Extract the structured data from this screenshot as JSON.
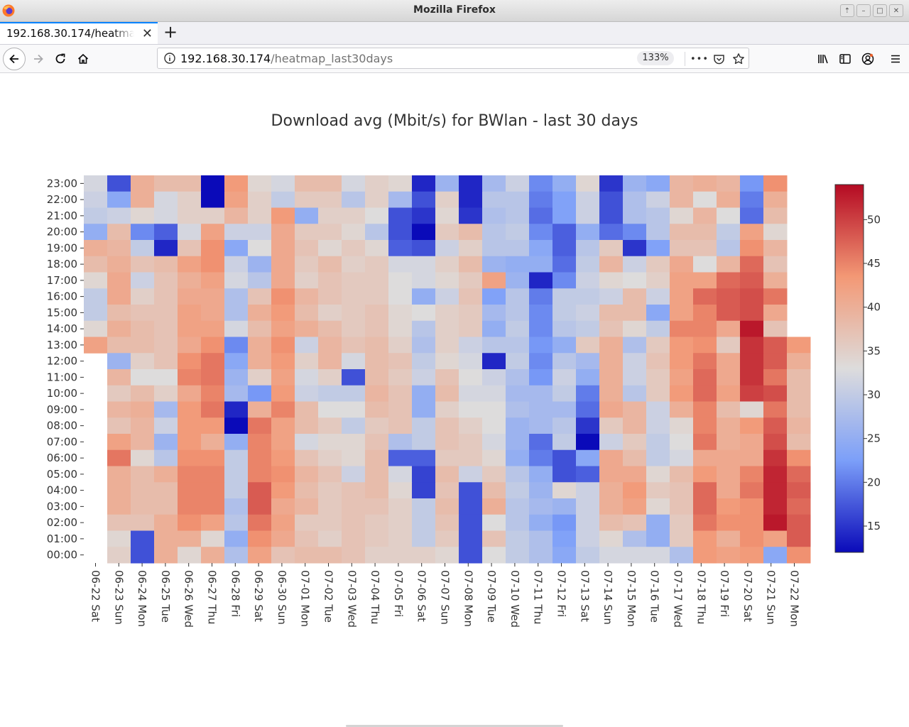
{
  "window": {
    "title": "Mozilla Firefox"
  },
  "tab": {
    "label": "192.168.30.174/heatmap_last30days",
    "close": "✕"
  },
  "newtab": {
    "label": "+"
  },
  "urlbar": {
    "host": "192.168.30.174",
    "path": "/heatmap_last30days",
    "zoom": "133%",
    "more": "•••"
  },
  "icons": [
    "firefox-logo-icon",
    "back-arrow-icon",
    "forward-arrow-icon",
    "reload-icon",
    "home-icon",
    "info-icon",
    "pocket-icon",
    "star-icon",
    "library-icon",
    "sidebar-icon",
    "account-icon",
    "menu-icon"
  ],
  "chart_data": {
    "type": "heatmap",
    "title": "Download avg (Mbit/s) for BWlan - last 30 days",
    "x_tick_labels": [
      "06-22 Sat",
      "06-23 Sun",
      "06-24 Mon",
      "06-25 Tue",
      "06-26 Wed",
      "06-27 Thu",
      "06-28 Fri",
      "06-29 Sat",
      "06-30 Sun",
      "07-01 Mon",
      "07-02 Tue",
      "07-03 Wed",
      "07-04 Thu",
      "07-05 Fri",
      "07-06 Sat",
      "07-07 Sun",
      "07-08 Mon",
      "07-09 Tue",
      "07-10 Wed",
      "07-11 Thu",
      "07-12 Fri",
      "07-13 Sat",
      "07-14 Sun",
      "07-15 Mon",
      "07-16 Tue",
      "07-17 Wed",
      "07-18 Thu",
      "07-19 Fri",
      "07-20 Sat",
      "07-21 Sun",
      "07-22 Mon"
    ],
    "y_tick_labels": [
      "23:00",
      "22:00",
      "21:00",
      "20:00",
      "19:00",
      "18:00",
      "17:00",
      "16:00",
      "15:00",
      "14:00",
      "13:00",
      "12:00",
      "11:00",
      "10:00",
      "09:00",
      "08:00",
      "07:00",
      "06:00",
      "05:00",
      "04:00",
      "03:00",
      "02:00",
      "01:00",
      "00:00"
    ],
    "colorbar": {
      "min": 12,
      "max": 54,
      "ticks": [
        15,
        20,
        25,
        30,
        35,
        40,
        45,
        50
      ],
      "colormap": "coolwarm"
    },
    "z": [
      [
        32,
        17,
        40,
        38,
        38,
        12,
        43,
        34,
        32,
        38,
        38,
        32,
        35,
        34,
        14,
        26,
        14,
        27,
        31,
        21,
        25,
        34,
        15,
        26,
        24,
        39,
        40,
        39,
        22,
        44,
        null
      ],
      [
        31,
        24,
        40,
        32,
        35,
        12,
        42,
        35,
        30,
        36,
        36,
        29,
        35,
        27,
        17,
        35,
        14,
        29,
        29,
        20,
        23,
        31,
        17,
        28,
        31,
        39,
        33,
        40,
        20,
        40,
        null
      ],
      [
        30,
        31,
        34,
        32,
        35,
        35,
        39,
        35,
        43,
        25,
        35,
        35,
        33,
        17,
        15,
        34,
        15,
        28,
        29,
        19,
        23,
        31,
        17,
        28,
        29,
        34,
        39,
        33,
        19,
        38,
        null
      ],
      [
        25,
        38,
        21,
        18,
        32,
        42,
        31,
        31,
        41,
        36,
        36,
        34,
        29,
        17,
        12,
        36,
        38,
        29,
        30,
        21,
        18,
        25,
        19,
        21,
        29,
        38,
        38,
        30,
        42,
        34,
        null
      ],
      [
        40,
        39,
        30,
        14,
        37,
        44,
        24,
        33,
        41,
        37,
        34,
        36,
        34,
        18,
        17,
        31,
        35,
        29,
        29,
        24,
        18,
        29,
        36,
        15,
        23,
        37,
        37,
        29,
        44,
        39,
        null
      ],
      [
        38,
        40,
        37,
        38,
        42,
        44,
        31,
        26,
        41,
        36,
        38,
        35,
        36,
        32,
        32,
        35,
        38,
        26,
        25,
        25,
        19,
        30,
        39,
        31,
        36,
        41,
        33,
        39,
        47,
        37,
        null
      ],
      [
        34,
        41,
        31,
        37,
        40,
        42,
        32,
        29,
        41,
        35,
        37,
        36,
        36,
        33,
        32,
        34,
        36,
        42,
        26,
        14,
        21,
        31,
        34,
        33,
        35,
        42,
        42,
        47,
        48,
        40,
        null
      ],
      [
        30,
        41,
        35,
        37,
        41,
        41,
        28,
        37,
        44,
        39,
        37,
        36,
        36,
        33,
        25,
        31,
        37,
        23,
        29,
        20,
        30,
        30,
        31,
        38,
        31,
        42,
        47,
        48,
        49,
        46,
        null
      ],
      [
        30,
        38,
        37,
        37,
        42,
        41,
        28,
        40,
        43,
        38,
        35,
        36,
        37,
        34,
        33,
        35,
        36,
        27,
        29,
        21,
        30,
        31,
        38,
        38,
        24,
        42,
        45,
        48,
        49,
        41,
        null
      ],
      [
        34,
        40,
        38,
        37,
        42,
        42,
        32,
        38,
        42,
        40,
        38,
        36,
        37,
        34,
        29,
        35,
        36,
        25,
        30,
        21,
        29,
        30,
        37,
        34,
        30,
        45,
        45,
        41,
        53,
        37,
        null
      ],
      [
        42,
        38,
        38,
        37,
        41,
        44,
        21,
        40,
        44,
        31,
        39,
        37,
        38,
        35,
        28,
        35,
        31,
        29,
        29,
        22,
        25,
        36,
        40,
        28,
        36,
        43,
        44,
        36,
        51,
        48,
        43
      ],
      [
        null,
        26,
        35,
        37,
        44,
        46,
        24,
        40,
        43,
        35,
        39,
        32,
        38,
        37,
        30,
        34,
        32,
        14,
        30,
        21,
        29,
        27,
        40,
        31,
        37,
        43,
        46,
        41,
        51,
        48,
        40
      ],
      [
        null,
        39,
        33,
        33,
        45,
        46,
        26,
        35,
        42,
        32,
        35,
        17,
        38,
        36,
        31,
        37,
        33,
        31,
        28,
        22,
        31,
        25,
        40,
        31,
        36,
        42,
        47,
        41,
        51,
        46,
        38
      ],
      [
        null,
        36,
        38,
        35,
        41,
        45,
        27,
        22,
        43,
        31,
        30,
        30,
        39,
        37,
        25,
        38,
        32,
        32,
        27,
        27,
        30,
        20,
        40,
        29,
        36,
        43,
        47,
        42,
        50,
        49,
        38
      ],
      [
        null,
        39,
        40,
        27,
        43,
        46,
        14,
        40,
        45,
        38,
        33,
        33,
        38,
        37,
        25,
        35,
        33,
        33,
        28,
        27,
        27,
        19,
        41,
        39,
        31,
        40,
        45,
        38,
        34,
        46,
        38
      ],
      [
        null,
        37,
        39,
        31,
        43,
        43,
        12,
        46,
        42,
        38,
        36,
        30,
        36,
        37,
        30,
        37,
        35,
        33,
        26,
        27,
        29,
        15,
        36,
        39,
        31,
        34,
        45,
        40,
        43,
        48,
        39
      ],
      [
        null,
        42,
        39,
        26,
        43,
        40,
        25,
        45,
        42,
        32,
        34,
        34,
        37,
        28,
        30,
        37,
        36,
        32,
        26,
        19,
        30,
        12,
        31,
        36,
        30,
        33,
        46,
        40,
        41,
        49,
        38
      ],
      [
        null,
        46,
        34,
        29,
        44,
        44,
        30,
        45,
        43,
        37,
        35,
        34,
        38,
        18,
        18,
        36,
        36,
        34,
        25,
        20,
        17,
        24,
        41,
        38,
        30,
        32,
        41,
        41,
        41,
        51,
        44
      ],
      [
        null,
        40,
        38,
        40,
        45,
        45,
        30,
        45,
        44,
        39,
        37,
        31,
        38,
        32,
        16,
        38,
        31,
        36,
        29,
        25,
        17,
        18,
        41,
        41,
        34,
        38,
        43,
        41,
        45,
        52,
        47
      ],
      [
        null,
        40,
        38,
        38,
        45,
        45,
        30,
        48,
        43,
        38,
        36,
        37,
        38,
        34,
        16,
        37,
        17,
        38,
        30,
        26,
        34,
        31,
        40,
        43,
        36,
        37,
        47,
        41,
        46,
        52,
        48
      ],
      [
        null,
        40,
        38,
        38,
        45,
        45,
        28,
        48,
        41,
        39,
        36,
        37,
        37,
        35,
        30,
        38,
        17,
        40,
        29,
        27,
        26,
        31,
        40,
        42,
        34,
        37,
        47,
        43,
        44,
        52,
        47
      ],
      [
        null,
        37,
        37,
        40,
        44,
        42,
        29,
        46,
        42,
        36,
        36,
        37,
        36,
        35,
        30,
        37,
        17,
        33,
        29,
        25,
        22,
        31,
        38,
        37,
        25,
        36,
        46,
        44,
        44,
        53,
        48
      ],
      [
        null,
        34,
        17,
        40,
        40,
        34,
        25,
        44,
        41,
        37,
        35,
        37,
        36,
        35,
        30,
        36,
        17,
        37,
        30,
        28,
        23,
        31,
        34,
        28,
        25,
        36,
        43,
        40,
        44,
        42,
        48
      ],
      [
        null,
        35,
        17,
        40,
        34,
        40,
        28,
        42,
        37,
        38,
        38,
        37,
        35,
        35,
        35,
        34,
        17,
        33,
        30,
        28,
        24,
        30,
        32,
        32,
        32,
        28,
        43,
        42,
        43,
        24,
        44
      ]
    ]
  }
}
